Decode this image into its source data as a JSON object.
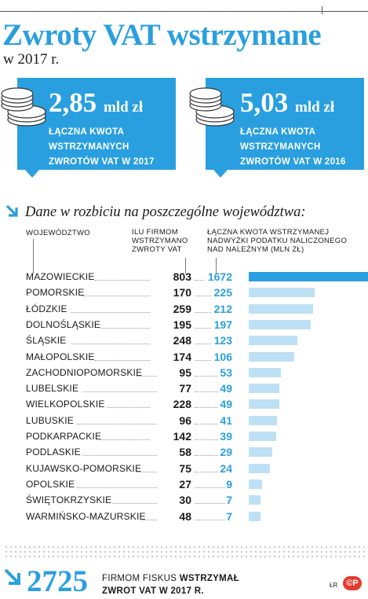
{
  "header": {
    "title": "Zwroty VAT wstrzymane",
    "subtitle": "w 2017 r."
  },
  "summary": [
    {
      "number": "2,85",
      "unit": "mld zł",
      "lines": [
        "ŁĄCZNA KWOTA",
        "WSTRZYMANYCH",
        "ZWROTÓW VAT W 2017"
      ]
    },
    {
      "number": "5,03",
      "unit": "mld zł",
      "lines": [
        "ŁĄCZNA KWOTA",
        "WSTRZYMANYCH",
        "ZWROTÓW VAT W 2016"
      ]
    }
  ],
  "section": {
    "title": "Dane w rozbiciu na poszczególne województwa:"
  },
  "columns": {
    "region": "WOJEWÓDZTWO",
    "count": [
      "ILU FIRMOM",
      "WSTRZYMANO",
      "ZWROTY VAT"
    ],
    "amount": [
      "ŁĄCZNA KWOTA WSTRZYMANEJ",
      "NADWYŻKI PODATKU NALICZONEGO",
      "NAD NALEŻNYM (MLN ZŁ)"
    ]
  },
  "chart_data": {
    "type": "bar",
    "categories": [
      "MAZOWIECKIE",
      "POMORSKIE",
      "ŁÓDZKIE",
      "DOLNOŚLĄSKIE",
      "ŚLĄSKIE",
      "MAŁOPOLSKIE",
      "ZACHODNIOPOMORSKIE",
      "LUBELSKIE",
      "WIELKOPOLSKIE",
      "LUBUSKIE",
      "PODKARPACKIE",
      "PODLASKIE",
      "KUJAWSKO-POMORSKIE",
      "OPOLSKIE",
      "ŚWIĘTOKRZYSKIE",
      "WARMIŃSKO-MAZURSKIE"
    ],
    "series": [
      {
        "name": "ILU FIRMOM WSTRZYMANO ZWROTY VAT",
        "values": [
          803,
          170,
          259,
          195,
          248,
          174,
          95,
          77,
          228,
          96,
          142,
          58,
          75,
          27,
          30,
          48
        ]
      },
      {
        "name": "ŁĄCZNA KWOTA WSTRZYMANEJ NADWYŻKI PODATKU NALICZONEGO NAD NALEŻNYM (MLN ZŁ)",
        "values": [
          1672,
          225,
          212,
          197,
          123,
          106,
          53,
          49,
          49,
          41,
          39,
          29,
          24,
          9,
          7,
          7
        ]
      }
    ],
    "bar_series": 1,
    "title": "",
    "xlabel": "",
    "ylabel": "",
    "bar_color_top": "#2a9fe0",
    "bar_color": "#bee0f4"
  },
  "footer": {
    "number": "2725",
    "text_line1_a": "FIRMOM FISKUS ",
    "text_line1_b": "WSTRZYMAŁ",
    "text_line2": "ZWROT VAT W 2017 R.",
    "credit": "ŁR",
    "logo": "©P"
  },
  "colors": {
    "accent": "#2a9fe0",
    "light_bar": "#bee0f4",
    "logo_red": "#e23b2e"
  }
}
